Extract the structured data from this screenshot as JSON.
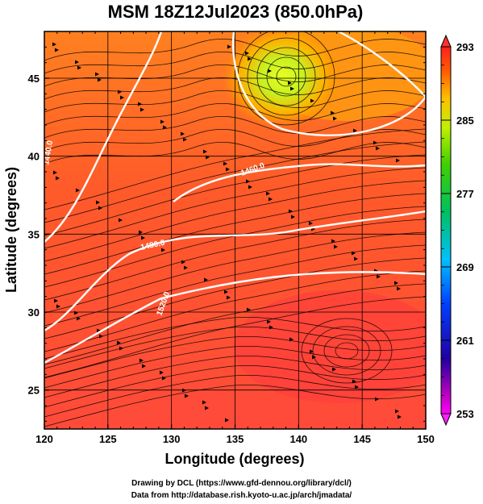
{
  "chart_data": {
    "type": "heatmap",
    "title": "MSM 18Z12Jul2023 (850.0hPa)",
    "xlabel": "Longitude (degrees)",
    "ylabel": "Latitude  (degrees)",
    "xlim": [
      120,
      150
    ],
    "ylim": [
      22.5,
      48
    ],
    "x_ticks": [
      120,
      125,
      130,
      135,
      140,
      145,
      150
    ],
    "y_ticks": [
      25,
      30,
      35,
      40,
      45
    ],
    "grid": true,
    "colorbar": {
      "range": [
        253,
        293
      ],
      "ticks": [
        253,
        261,
        269,
        277,
        285,
        293
      ],
      "placement": "right"
    },
    "contour_labels": [
      "1440.0",
      "1480.0",
      "1520.0",
      "1460.0"
    ]
  },
  "credits": {
    "line1": "Drawing by DCL (https://www.gfd-dennou.org/library/dcl/)",
    "line2": "Data from http://database.rish.kyoto-u.ac.jp/arch/jmadata/"
  }
}
